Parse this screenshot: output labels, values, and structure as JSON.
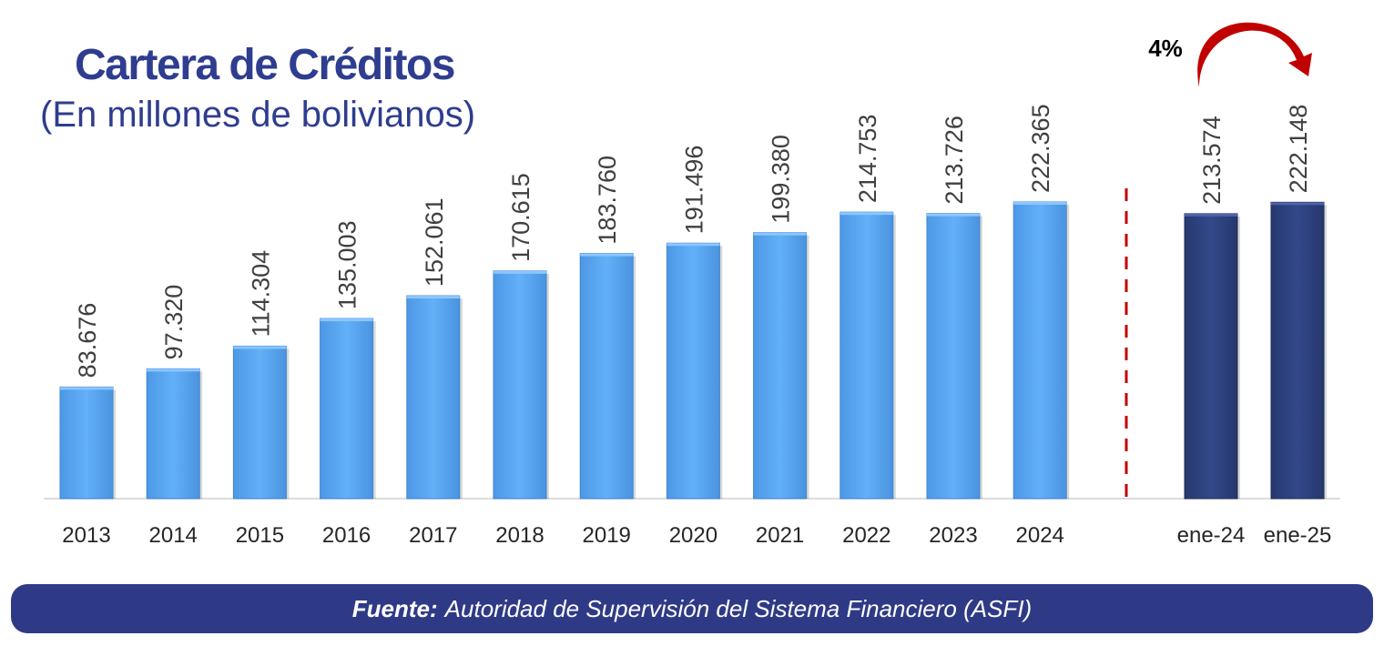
{
  "colors": {
    "annual_bar": "#5ba9f4",
    "monthly_bar": "#2e4480",
    "title": "#2e3d8f",
    "divider": "#c00000",
    "growth_arrow": "#c00000",
    "label_text": "#404040",
    "source_bg": "#2f3a87"
  },
  "footer": {
    "source_label": "Fuente:",
    "source_text": "Autoridad de Supervisión del Sistema Financiero (ASFI)"
  },
  "chart_data": {
    "type": "bar",
    "title": "Cartera de Créditos",
    "subtitle": "(En millones de bolivianos)",
    "categories": [
      "2013",
      "2014",
      "2015",
      "2016",
      "2017",
      "2018",
      "2019",
      "2020",
      "2021",
      "2022",
      "2023",
      "2024",
      "ene-24",
      "ene-25"
    ],
    "values": [
      83676,
      97320,
      114304,
      135003,
      152061,
      170615,
      183760,
      191496,
      199380,
      214753,
      213726,
      222365,
      213574,
      222148
    ],
    "value_labels": [
      "83.676",
      "97.320",
      "114.304",
      "135.003",
      "152.061",
      "170.615",
      "183.760",
      "191.496",
      "199.380",
      "214.753",
      "213.726",
      "222.365",
      "213.574",
      "222.148"
    ],
    "groups": [
      "annual",
      "annual",
      "annual",
      "annual",
      "annual",
      "annual",
      "annual",
      "annual",
      "annual",
      "annual",
      "annual",
      "annual",
      "monthly",
      "monthly"
    ],
    "ylim": [
      0,
      222365
    ],
    "grid": false,
    "legend": "none",
    "annotations": [
      {
        "text": "4%",
        "from": "ene-24",
        "to": "ene-25",
        "type": "growth-arrow"
      }
    ]
  }
}
